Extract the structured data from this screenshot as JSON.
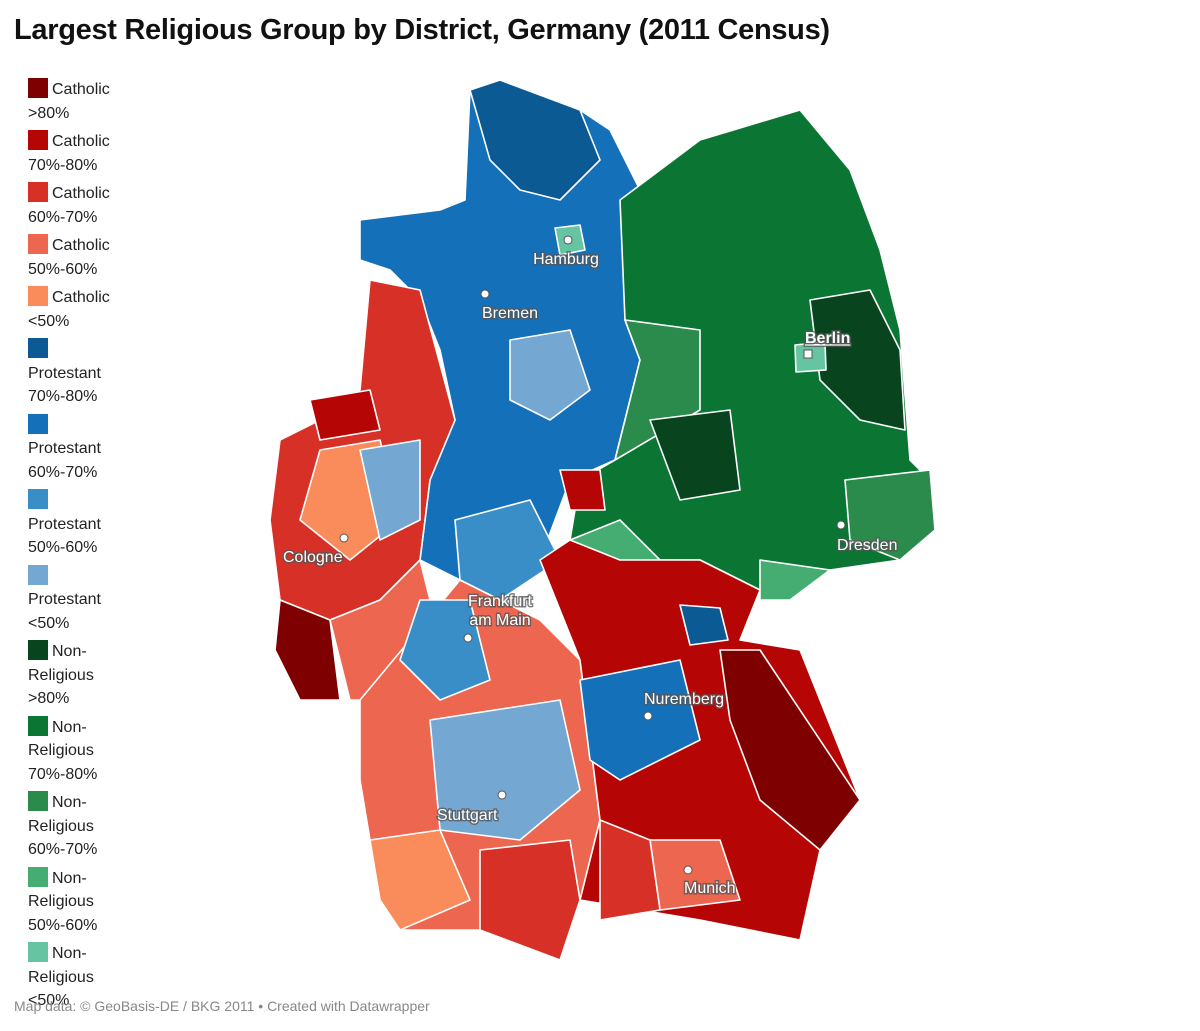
{
  "title": "Largest Religious Group by District, Germany (2011 Census)",
  "legend": [
    {
      "label": "Catholic >80%",
      "color": "#7f0000"
    },
    {
      "label": "Catholic 70%-80%",
      "color": "#b50505"
    },
    {
      "label": "Catholic 60%-70%",
      "color": "#d73027"
    },
    {
      "label": "Catholic 50%-60%",
      "color": "#ec6650"
    },
    {
      "label": "Catholic <50%",
      "color": "#fa8c5c"
    },
    {
      "label": "Protestant 70%-80%",
      "color": "#0b5a93"
    },
    {
      "label": "Protestant 60%-70%",
      "color": "#1470b8"
    },
    {
      "label": "Protestant 50%-60%",
      "color": "#3a8ec8"
    },
    {
      "label": "Protestant <50%",
      "color": "#74a8d3"
    },
    {
      "label": "Non-Religious >80%",
      "color": "#08451f"
    },
    {
      "label": "Non-Religious 70%-80%",
      "color": "#0b7534"
    },
    {
      "label": "Non-Religious 60%-70%",
      "color": "#2a8b4c"
    },
    {
      "label": "Non-Religious 50%-60%",
      "color": "#45ad72"
    },
    {
      "label": "Non-Religious <50%",
      "color": "#66c4a3"
    }
  ],
  "cities": [
    "Hamburg",
    "Bremen",
    "Berlin",
    "Cologne",
    "Frankfurt am Main",
    "Nuremberg",
    "Stuttgart",
    "Dresden",
    "Munich"
  ],
  "footer": "Map data: © GeoBasis-DE / BKG 2011 • Created with Datawrapper"
}
